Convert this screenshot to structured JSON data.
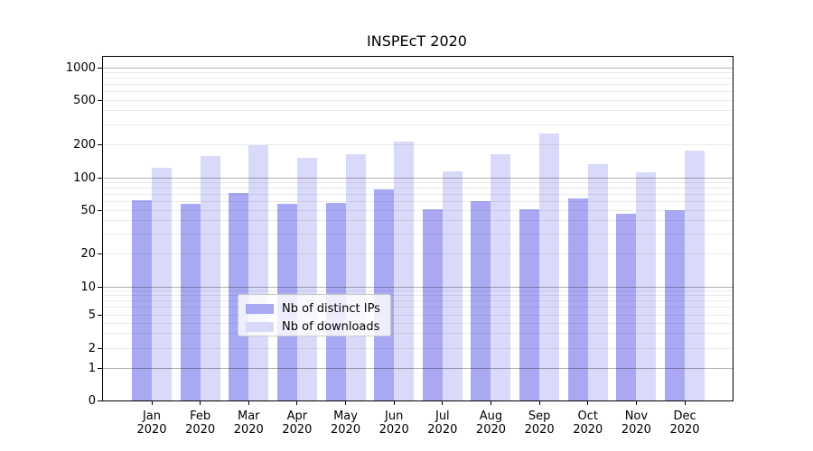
{
  "chart_data": {
    "type": "bar",
    "title": "INSPEcT 2020",
    "categories": [
      "Jan 2020",
      "Feb 2020",
      "Mar 2020",
      "Apr 2020",
      "May 2020",
      "Jun 2020",
      "Jul 2020",
      "Aug 2020",
      "Sep 2020",
      "Oct 2020",
      "Nov 2020",
      "Dec 2020"
    ],
    "series": [
      {
        "name": "Nb of distinct IPs",
        "color": "#a9a9f3",
        "values": [
          62,
          57,
          72,
          57,
          58,
          78,
          51,
          61,
          51,
          64,
          46,
          50
        ]
      },
      {
        "name": "Nb of downloads",
        "color": "#d9d9f9",
        "values": [
          123,
          158,
          195,
          150,
          164,
          212,
          114,
          164,
          248,
          133,
          112,
          176
        ]
      }
    ],
    "y_axis": {
      "scale": "log-like with 0 baseline",
      "tick_labels": [
        "1000",
        "500",
        "200",
        "100",
        "50",
        "20",
        "10",
        "5",
        "2",
        "1",
        "0"
      ],
      "ylim": [
        0,
        1400
      ]
    },
    "grid": "horizontal; darker lines at powers of 10, faint minor lines at 2-9 multiples",
    "legend_position": "lower center inside plot",
    "colors": {
      "major_grid": "rgba(0,0,0,0.30)",
      "minor_grid": "rgba(0,0,0,0.08)",
      "legend_border": "#cccccc",
      "legend_background": "rgba(255,255,255,0.8)"
    }
  }
}
